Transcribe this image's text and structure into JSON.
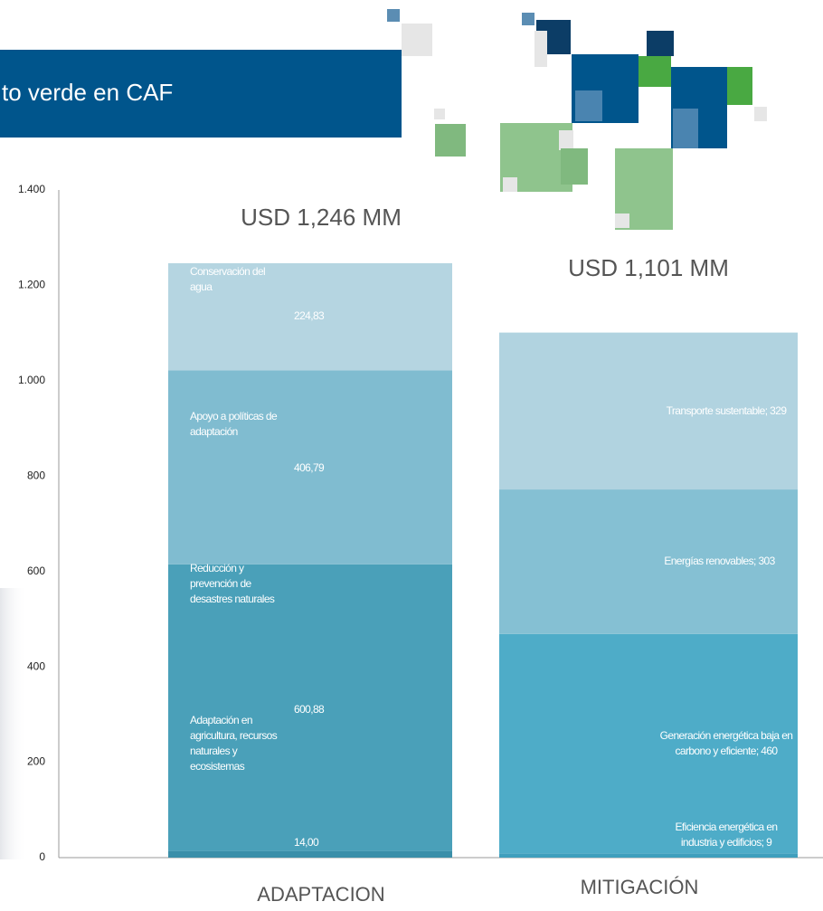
{
  "header": {
    "title": "to verde en CAF"
  },
  "chart_data": {
    "type": "stacked-bar",
    "yticks": [
      0,
      200,
      400,
      600,
      800,
      {
        "value": 1000,
        "label": "1.000"
      },
      {
        "value": 1200,
        "label": "1.200"
      },
      {
        "value": 1400,
        "label": "1.400"
      }
    ],
    "ylim": [
      0,
      1400
    ],
    "stacks": [
      {
        "category": "ADAPTACION",
        "total_label": "USD 1,246 MM",
        "segments": [
          {
            "name": "Adaptación en agricultura, recursos naturales y ecosistemas",
            "value": 14,
            "value_label": "14,00",
            "color": "#3b8fa9"
          },
          {
            "name": "Reducción y prevención de desastres naturales",
            "value": 600.88,
            "value_label": "600,88",
            "color": "#4aa0b9"
          },
          {
            "name": "Apoyo a políticas de adaptación",
            "value": 406.79,
            "value_label": "406,79",
            "color": "#80bcd0"
          },
          {
            "name": "Conservación del agua",
            "value": 224.83,
            "value_label": "224,83",
            "color": "#b5d5e1"
          }
        ]
      },
      {
        "category": "MITIGACIÓN",
        "total_label": "USD 1,101 MM",
        "segments": [
          {
            "label": "Eficiencia energética en industria y edificios; 9",
            "value": 9,
            "color": "#3f9fbd"
          },
          {
            "label": "Generación energética baja en carbono y eficiente; 460",
            "value": 460,
            "color": "#4eacc8"
          },
          {
            "label": "Energías renovables; 303",
            "value": 303,
            "color": "#85c0d3"
          },
          {
            "label": "Transporte sustentable; 329",
            "value": 329,
            "color": "#b1d3e0"
          }
        ]
      }
    ]
  }
}
